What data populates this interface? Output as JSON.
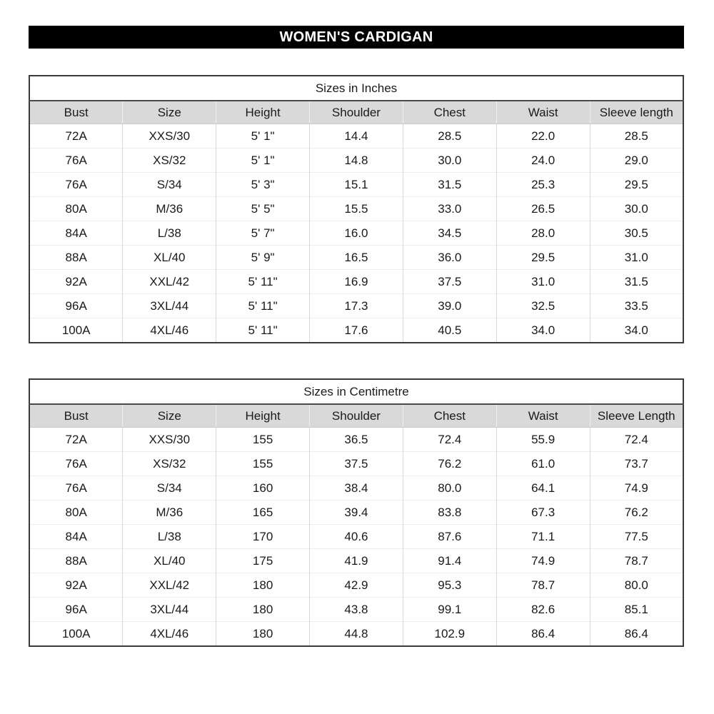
{
  "banner": {
    "title": "WOMEN'S CARDIGAN",
    "bg_color": "#000000",
    "text_color": "#ffffff"
  },
  "tables": [
    {
      "title": "Sizes in Inches",
      "columns": [
        "Bust",
        "Size",
        "Height",
        "Shoulder",
        "Chest",
        "Waist",
        "Sleeve length"
      ],
      "rows": [
        [
          "72A",
          "XXS/30",
          "5' 1\"",
          "14.4",
          "28.5",
          "22.0",
          "28.5"
        ],
        [
          "76A",
          "XS/32",
          "5' 1\"",
          "14.8",
          "30.0",
          "24.0",
          "29.0"
        ],
        [
          "76A",
          "S/34",
          "5' 3\"",
          "15.1",
          "31.5",
          "25.3",
          "29.5"
        ],
        [
          "80A",
          "M/36",
          "5' 5\"",
          "15.5",
          "33.0",
          "26.5",
          "30.0"
        ],
        [
          "84A",
          "L/38",
          "5' 7\"",
          "16.0",
          "34.5",
          "28.0",
          "30.5"
        ],
        [
          "88A",
          "XL/40",
          "5' 9\"",
          "16.5",
          "36.0",
          "29.5",
          "31.0"
        ],
        [
          "92A",
          "XXL/42",
          "5' 11\"",
          "16.9",
          "37.5",
          "31.0",
          "31.5"
        ],
        [
          "96A",
          "3XL/44",
          "5' 11\"",
          "17.3",
          "39.0",
          "32.5",
          "33.5"
        ],
        [
          "100A",
          "4XL/46",
          "5' 11\"",
          "17.6",
          "40.5",
          "34.0",
          "34.0"
        ]
      ]
    },
    {
      "title": "Sizes in Centimetre",
      "columns": [
        "Bust",
        "Size",
        "Height",
        "Shoulder",
        "Chest",
        "Waist",
        "Sleeve Length"
      ],
      "rows": [
        [
          "72A",
          "XXS/30",
          "155",
          "36.5",
          "72.4",
          "55.9",
          "72.4"
        ],
        [
          "76A",
          "XS/32",
          "155",
          "37.5",
          "76.2",
          "61.0",
          "73.7"
        ],
        [
          "76A",
          "S/34",
          "160",
          "38.4",
          "80.0",
          "64.1",
          "74.9"
        ],
        [
          "80A",
          "M/36",
          "165",
          "39.4",
          "83.8",
          "67.3",
          "76.2"
        ],
        [
          "84A",
          "L/38",
          "170",
          "40.6",
          "87.6",
          "71.1",
          "77.5"
        ],
        [
          "88A",
          "XL/40",
          "175",
          "41.9",
          "91.4",
          "74.9",
          "78.7"
        ],
        [
          "92A",
          "XXL/42",
          "180",
          "42.9",
          "95.3",
          "78.7",
          "80.0"
        ],
        [
          "96A",
          "3XL/44",
          "180",
          "43.8",
          "99.1",
          "82.6",
          "85.1"
        ],
        [
          "100A",
          "4XL/46",
          "180",
          "44.8",
          "102.9",
          "86.4",
          "86.4"
        ]
      ]
    }
  ],
  "colors": {
    "header_row_bg": "#d9d9d9",
    "outer_border": "#3b3b3b",
    "grid_line": "#d9d9d9",
    "banner_bg": "#000000"
  }
}
